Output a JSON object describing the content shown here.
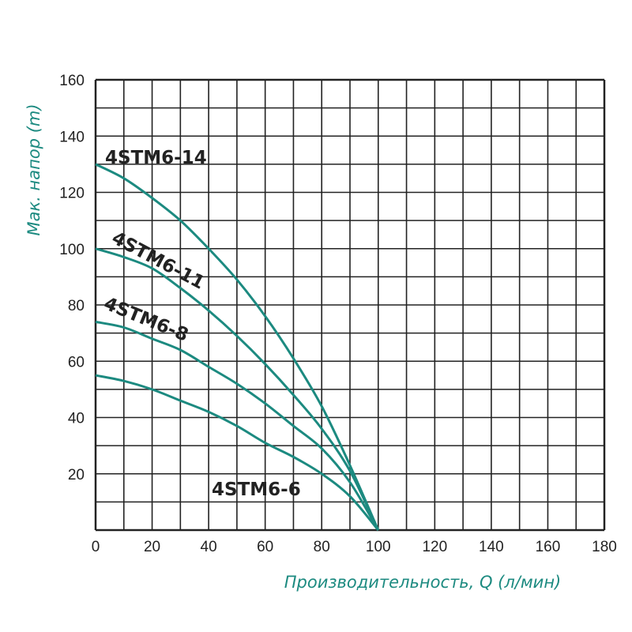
{
  "chart_data": {
    "type": "line",
    "title": "",
    "xlabel": "Производительность, Q (л/мин)",
    "ylabel": "Мак. напор (m)",
    "xlim": [
      0,
      180
    ],
    "ylim": [
      0,
      160
    ],
    "x_ticks": [
      "0",
      "20",
      "40",
      "60",
      "80",
      "100",
      "120",
      "140",
      "160",
      "180"
    ],
    "y_ticks": [
      "20",
      "40",
      "60",
      "80",
      "100",
      "120",
      "140",
      "160"
    ],
    "grid": true,
    "grid_step": {
      "x": 10,
      "y": 10
    },
    "colors": {
      "curve": "#1c8a80",
      "axis_label": "#1c8a80",
      "grid": "#222222"
    },
    "x": [
      0,
      10,
      20,
      30,
      40,
      50,
      60,
      70,
      80,
      90,
      100
    ],
    "series": [
      {
        "name": "4STM6-14",
        "values": [
          130,
          125,
          118,
          110,
          100,
          89,
          76,
          61,
          44,
          23,
          0
        ]
      },
      {
        "name": "4STM6-11",
        "values": [
          100,
          97,
          93,
          86,
          78,
          69,
          59,
          48,
          36,
          21,
          0
        ]
      },
      {
        "name": "4STM6-8",
        "values": [
          74,
          72,
          68,
          64,
          58,
          52,
          45,
          37,
          29,
          17,
          0
        ]
      },
      {
        "name": "4STM6-6",
        "values": [
          55,
          53,
          50,
          46,
          42,
          37,
          31,
          26,
          20,
          12,
          0
        ]
      }
    ]
  }
}
